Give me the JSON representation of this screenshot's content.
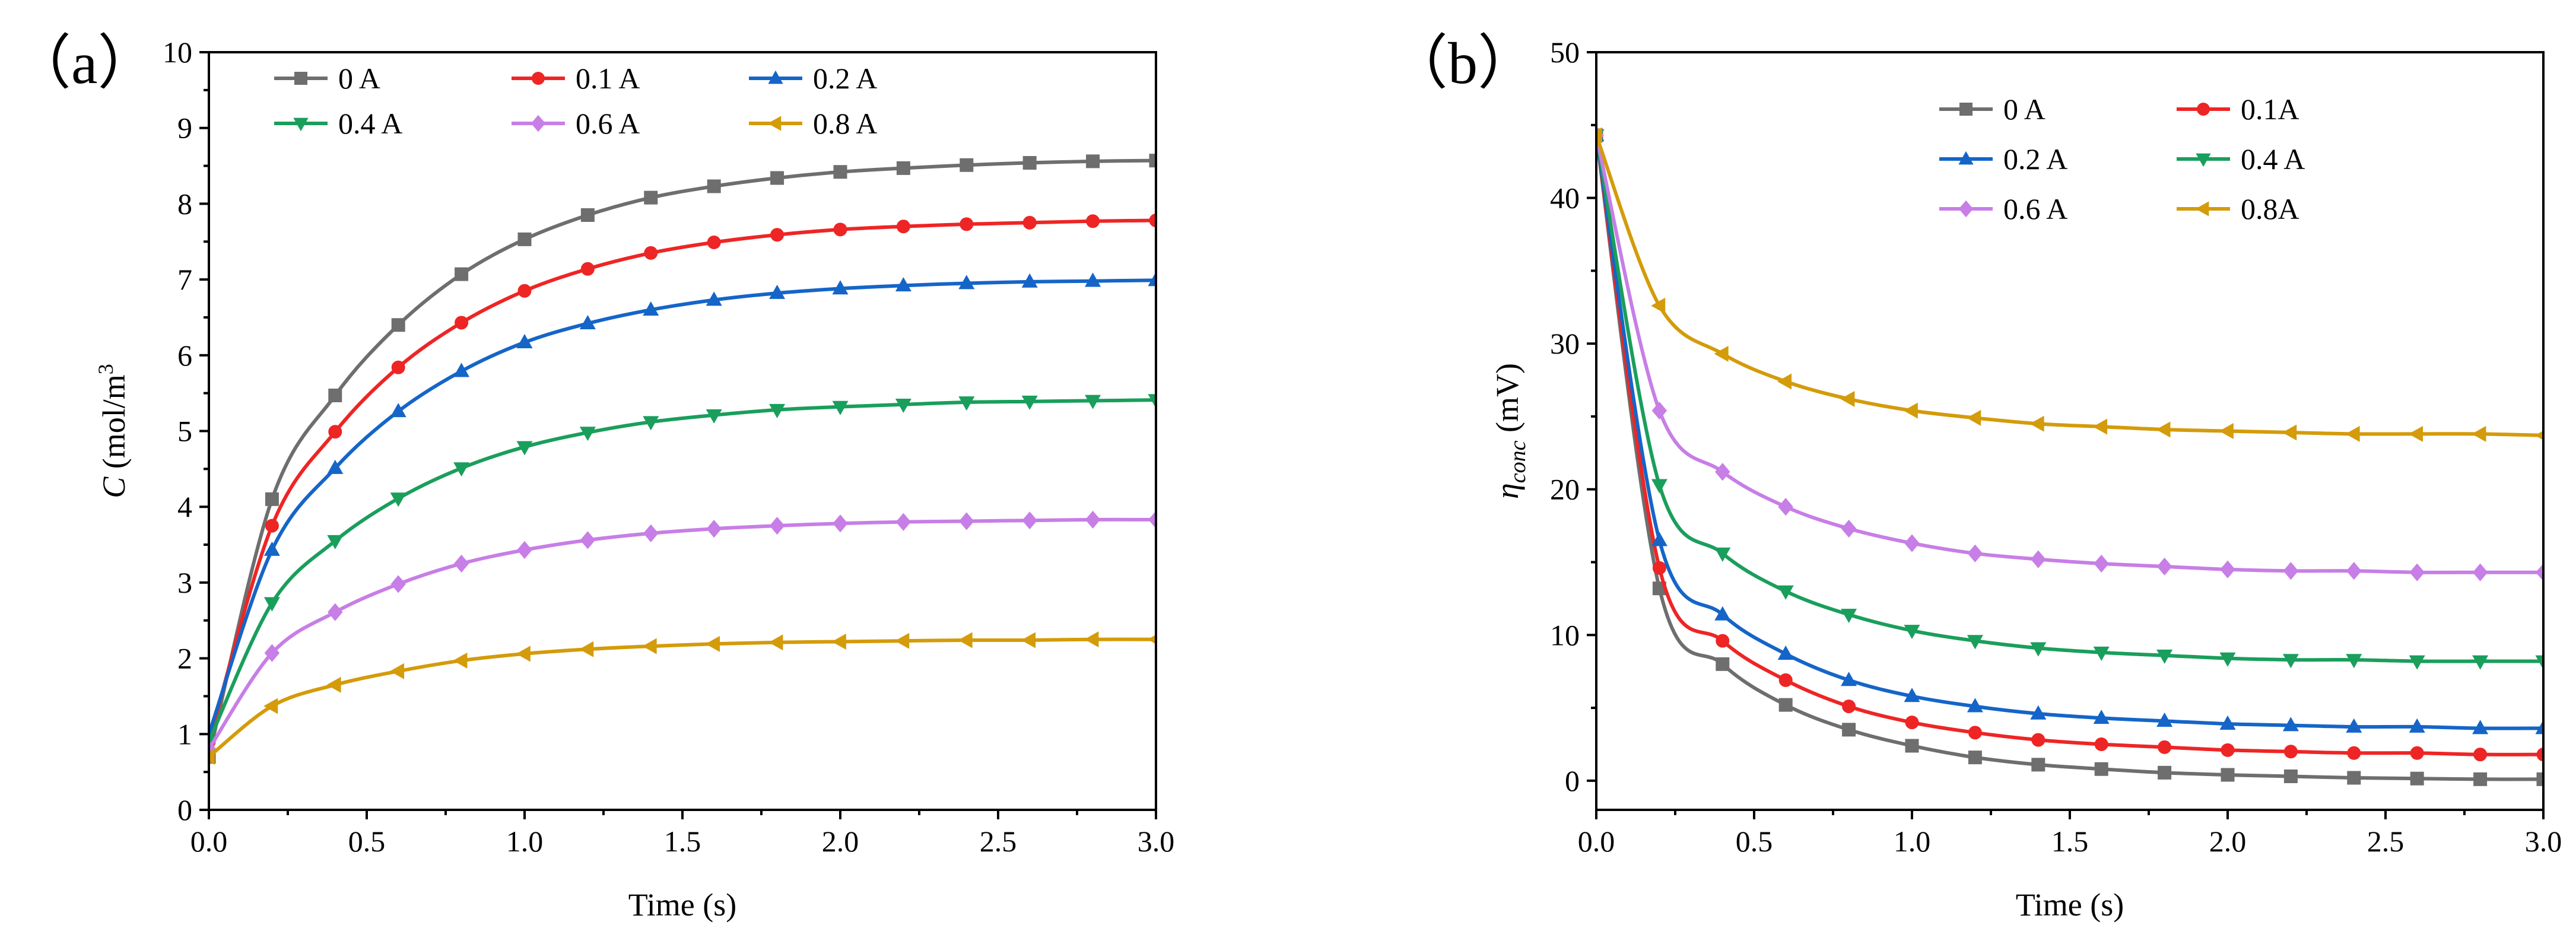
{
  "chart_data": [
    {
      "type": "line",
      "panel_label": "（a）",
      "title": "",
      "xlabel": "Time (s)",
      "ylabel_symbol": "C",
      "ylabel_unit": "(mol/m",
      "ylabel_exp": "3",
      "xlim": [
        0,
        3
      ],
      "ylim": [
        0,
        10
      ],
      "xticks": [
        0,
        0.5,
        1,
        1.5,
        2,
        2.5,
        3
      ],
      "xtick_labels": [
        "0.0",
        "0.5",
        "1.0",
        "1.5",
        "2.0",
        "2.5",
        "3.0"
      ],
      "yticks": [
        0,
        1,
        2,
        3,
        4,
        5,
        6,
        7,
        8,
        9,
        10
      ],
      "ytick_labels": [
        "0",
        "1",
        "2",
        "3",
        "4",
        "5",
        "6",
        "7",
        "8",
        "9",
        "10"
      ],
      "legend_position": "top",
      "legend_columns": 3,
      "x": [
        0,
        0.2,
        0.4,
        0.6,
        0.8,
        1.0,
        1.2,
        1.4,
        1.6,
        1.8,
        2.0,
        2.2,
        2.4,
        2.6,
        2.8,
        3.0
      ],
      "series": [
        {
          "name": "0 A",
          "color": "#6e6e6e",
          "marker": "square",
          "values": [
            0.7,
            4.1,
            5.47,
            6.4,
            7.07,
            7.53,
            7.85,
            8.08,
            8.23,
            8.34,
            8.42,
            8.47,
            8.51,
            8.54,
            8.56,
            8.57
          ]
        },
        {
          "name": "0.1 A",
          "color": "#ee2525",
          "marker": "circle",
          "values": [
            0.9,
            3.75,
            4.99,
            5.84,
            6.43,
            6.85,
            7.14,
            7.35,
            7.49,
            7.59,
            7.66,
            7.7,
            7.73,
            7.75,
            7.77,
            7.78
          ]
        },
        {
          "name": "0.2 A",
          "color": "#1565c8",
          "marker": "triangle-up",
          "values": [
            1.0,
            3.43,
            4.51,
            5.26,
            5.79,
            6.17,
            6.42,
            6.6,
            6.73,
            6.82,
            6.88,
            6.92,
            6.95,
            6.97,
            6.98,
            6.99
          ]
        },
        {
          "name": "0.4 A",
          "color": "#1a9e5c",
          "marker": "triangle-down",
          "values": [
            0.9,
            2.73,
            3.55,
            4.11,
            4.51,
            4.79,
            4.98,
            5.12,
            5.21,
            5.28,
            5.32,
            5.35,
            5.38,
            5.39,
            5.4,
            5.41
          ]
        },
        {
          "name": "0.6 A",
          "color": "#c77ee6",
          "marker": "diamond",
          "values": [
            0.8,
            2.07,
            2.61,
            2.98,
            3.25,
            3.43,
            3.56,
            3.65,
            3.71,
            3.75,
            3.78,
            3.8,
            3.81,
            3.82,
            3.83,
            3.83
          ]
        },
        {
          "name": "0.8 A",
          "color": "#d49b0a",
          "marker": "triangle-left",
          "values": [
            0.7,
            1.37,
            1.65,
            1.83,
            1.97,
            2.06,
            2.12,
            2.16,
            2.19,
            2.21,
            2.22,
            2.23,
            2.24,
            2.24,
            2.25,
            2.25
          ]
        }
      ]
    },
    {
      "type": "line",
      "panel_label": "（b）",
      "title": "",
      "xlabel": "Time (s)",
      "ylabel_symbol": "η",
      "ylabel_sub": "conc",
      "ylabel_unit": " (mV)",
      "xlim": [
        0,
        3
      ],
      "ylim": [
        -2,
        50
      ],
      "xticks": [
        0,
        0.5,
        1,
        1.5,
        2,
        2.5,
        3
      ],
      "xtick_labels": [
        "0.0",
        "0.5",
        "1.0",
        "1.5",
        "2.0",
        "2.5",
        "3.0"
      ],
      "yticks": [
        0,
        10,
        20,
        30,
        40,
        50
      ],
      "ytick_labels": [
        "0",
        "10",
        "20",
        "30",
        "40",
        "50"
      ],
      "legend_position": "top-right",
      "legend_columns": 2,
      "x": [
        0,
        0.2,
        0.4,
        0.6,
        0.8,
        1.0,
        1.2,
        1.4,
        1.6,
        1.8,
        2.0,
        2.2,
        2.4,
        2.6,
        2.8,
        3.0
      ],
      "series": [
        {
          "name": "0 A",
          "color": "#6e6e6e",
          "marker": "square",
          "values": [
            44.3,
            13.2,
            8.0,
            5.2,
            3.5,
            2.4,
            1.6,
            1.1,
            0.8,
            0.55,
            0.4,
            0.3,
            0.2,
            0.15,
            0.1,
            0.1
          ]
        },
        {
          "name": "0.1A",
          "color": "#ee2525",
          "marker": "circle",
          "values": [
            44.3,
            14.6,
            9.6,
            6.9,
            5.1,
            4.0,
            3.3,
            2.8,
            2.5,
            2.3,
            2.1,
            2.0,
            1.9,
            1.9,
            1.8,
            1.8
          ]
        },
        {
          "name": "0.2 A",
          "color": "#1565c8",
          "marker": "triangle-up",
          "values": [
            44.3,
            16.5,
            11.4,
            8.7,
            6.9,
            5.8,
            5.1,
            4.6,
            4.3,
            4.1,
            3.9,
            3.8,
            3.7,
            3.7,
            3.6,
            3.6
          ]
        },
        {
          "name": "0.4 A",
          "color": "#1a9e5c",
          "marker": "triangle-down",
          "values": [
            44.3,
            20.3,
            15.6,
            13.0,
            11.4,
            10.3,
            9.6,
            9.1,
            8.8,
            8.6,
            8.4,
            8.3,
            8.3,
            8.2,
            8.2,
            8.2
          ]
        },
        {
          "name": "0.6 A",
          "color": "#c77ee6",
          "marker": "diamond",
          "values": [
            44.3,
            25.4,
            21.2,
            18.8,
            17.3,
            16.3,
            15.6,
            15.2,
            14.9,
            14.7,
            14.5,
            14.4,
            14.4,
            14.3,
            14.3,
            14.3
          ]
        },
        {
          "name": "0.8A",
          "color": "#d49b0a",
          "marker": "triangle-left",
          "values": [
            44.3,
            32.6,
            29.3,
            27.4,
            26.2,
            25.4,
            24.9,
            24.5,
            24.3,
            24.1,
            24.0,
            23.9,
            23.8,
            23.8,
            23.8,
            23.7
          ]
        }
      ]
    }
  ]
}
